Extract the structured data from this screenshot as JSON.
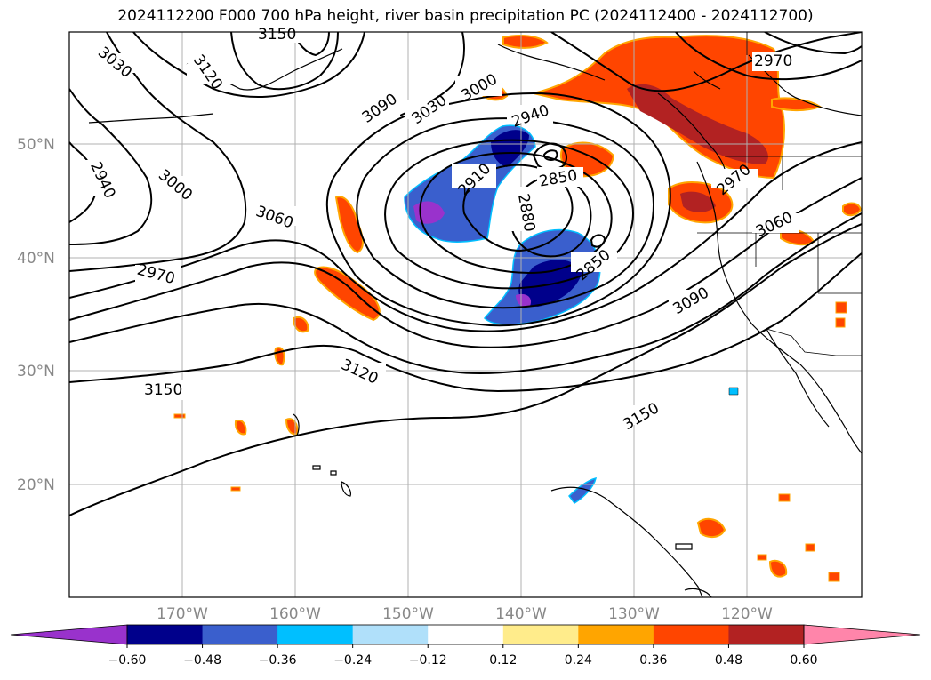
{
  "title": "2024112200 F000 700 hPa height, river basin precipitation PC (2024112400 - 2024112700)",
  "map": {
    "lat_labels": [
      "50°N",
      "40°N",
      "30°N",
      "20°N"
    ],
    "lon_labels": [
      "170°W",
      "160°W",
      "150°W",
      "140°W",
      "130°W",
      "120°W"
    ],
    "contour_labels": [
      "3150",
      "3030",
      "3120",
      "3090",
      "3030",
      "3000",
      "2940",
      "2940",
      "3000",
      "3060",
      "2910",
      "2880",
      "2850",
      "2850",
      "2970",
      "3090",
      "3120",
      "3150",
      "3150",
      "2970",
      "2970",
      "3060"
    ]
  },
  "colorbar": {
    "ticks": [
      "−0.60",
      "−0.48",
      "−0.36",
      "−0.24",
      "−0.12",
      "0.12",
      "0.24",
      "0.36",
      "0.48",
      "0.60"
    ],
    "colors": [
      "#9932cc",
      "#00008b",
      "#3a5fcd",
      "#00bfff",
      "#b0e0fa",
      "#ffffff",
      "#ffec8b",
      "#ffa500",
      "#ff4500",
      "#b22222",
      "#ff85aa"
    ]
  },
  "colors": {
    "strong_negative": "#00008b",
    "negative": "#3a5fcd",
    "positive": "#ff4500",
    "strong_positive": "#b22222"
  }
}
